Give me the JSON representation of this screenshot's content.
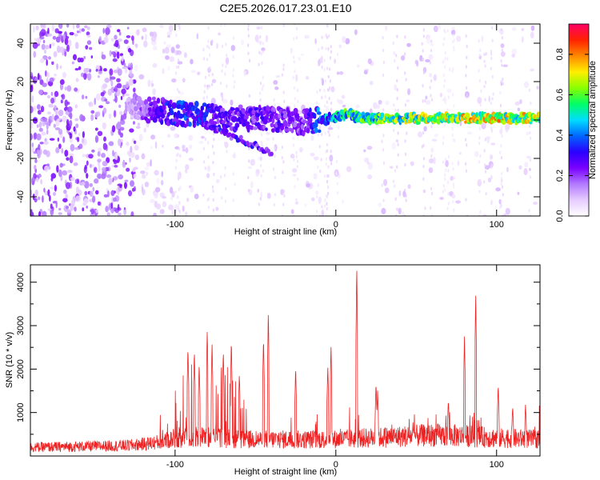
{
  "figure_title": "C2E5.2026.017.23.01.E10",
  "chart_data": [
    {
      "type": "heatmap",
      "title": "C2E5.2026.017.23.01.E10",
      "xlabel": "Height of straight line (km)",
      "ylabel": "Frequency (Hz)",
      "xlim": [
        -190,
        127
      ],
      "ylim": [
        -50,
        50
      ],
      "xticks": [
        -100,
        0,
        100
      ],
      "yticks": [
        -40,
        -20,
        0,
        20,
        40
      ],
      "colorbar": {
        "label": "Normalized spectral amplitude",
        "range": [
          0.0,
          0.95
        ],
        "ticks": [
          0.0,
          0.2,
          0.4,
          0.6,
          0.8
        ],
        "tick_labels": [
          "0.0",
          "0.2",
          "0.4",
          "0.6",
          "0.8"
        ],
        "colormap": [
          "#ffffff",
          "#e6ccff",
          "#b27aff",
          "#7a00ff",
          "#2a00ff",
          "#0066ff",
          "#00ddff",
          "#00ff66",
          "#88ff00",
          "#ffee00",
          "#ff8800",
          "#ff2200",
          "#ff0066"
        ]
      },
      "ridge": {
        "description_points_x": [
          -125,
          -110,
          -95,
          -80,
          -65,
          -50,
          -35,
          -20,
          -10,
          0,
          5,
          20,
          40,
          60,
          80,
          100,
          127
        ],
        "description_points_y": [
          6,
          5,
          3,
          2,
          1,
          1,
          0,
          -1,
          0,
          1,
          3,
          1,
          1,
          1,
          1,
          1,
          1
        ],
        "amplitude": [
          0.15,
          0.35,
          0.4,
          0.35,
          0.3,
          0.3,
          0.3,
          0.25,
          0.45,
          0.55,
          0.6,
          0.65,
          0.7,
          0.75,
          0.8,
          0.8,
          0.75
        ]
      }
    },
    {
      "type": "line",
      "xlabel": "Height of straight line (km)",
      "ylabel": "SNR (10 * v/v)",
      "xlim": [
        -190,
        127
      ],
      "ylim": [
        0,
        4400
      ],
      "xticks": [
        -100,
        0,
        100
      ],
      "yticks": [
        1000,
        2000,
        3000,
        4000
      ],
      "color": "#ee2222",
      "baseline_x": [
        -190,
        -150,
        -130,
        -120,
        -110,
        -100,
        -80,
        -60,
        -40,
        -20,
        0,
        20,
        40,
        60,
        80,
        100,
        127
      ],
      "baseline_y": [
        250,
        280,
        300,
        340,
        400,
        500,
        560,
        480,
        480,
        470,
        480,
        520,
        560,
        600,
        580,
        520,
        480
      ],
      "peaks_x": [
        -92,
        -88,
        -85,
        -80,
        -77,
        -70,
        -65,
        -60,
        -45,
        -42,
        -25,
        -5,
        -3,
        13,
        25,
        26,
        70,
        80,
        87,
        101,
        110,
        118
      ],
      "peaks_y": [
        2550,
        2450,
        2150,
        2900,
        2650,
        2450,
        2700,
        1900,
        2750,
        3350,
        2050,
        2100,
        2550,
        4400,
        1700,
        1500,
        1300,
        2750,
        3750,
        1650,
        1150,
        1200
      ]
    }
  ]
}
